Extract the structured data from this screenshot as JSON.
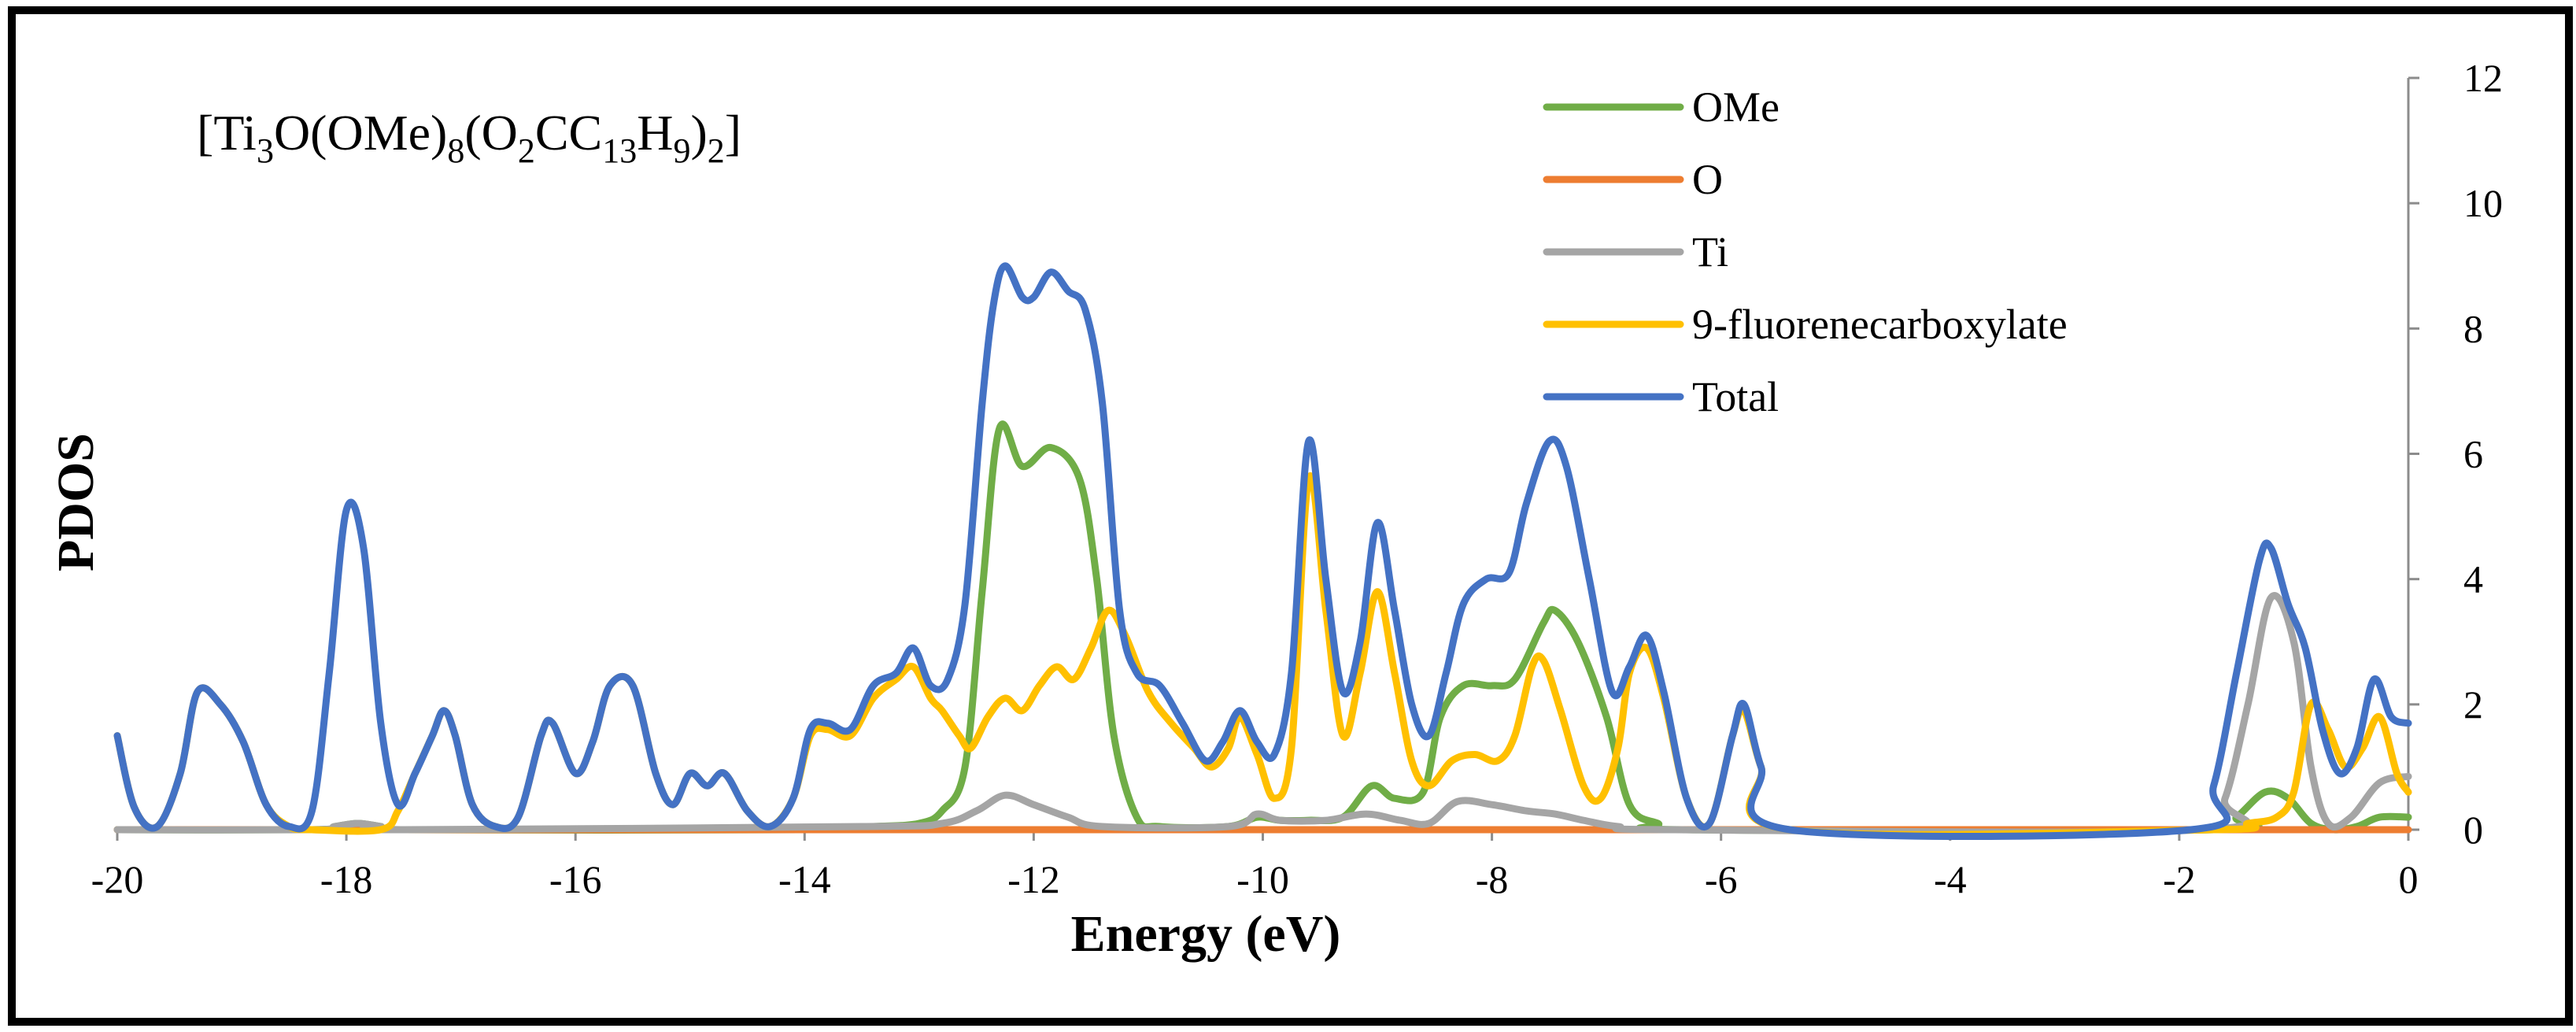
{
  "chart_data": {
    "type": "line",
    "title": "",
    "formula": {
      "parts": [
        {
          "text": "[Ti",
          "sub": false
        },
        {
          "text": "3",
          "sub": true
        },
        {
          "text": "O(OMe)",
          "sub": false
        },
        {
          "text": "8",
          "sub": true
        },
        {
          "text": "(O",
          "sub": false
        },
        {
          "text": "2",
          "sub": true
        },
        {
          "text": "CC",
          "sub": false
        },
        {
          "text": "13",
          "sub": true
        },
        {
          "text": "H",
          "sub": false
        },
        {
          "text": "9",
          "sub": true
        },
        {
          "text": ")",
          "sub": false
        },
        {
          "text": "2",
          "sub": true
        },
        {
          "text": "]",
          "sub": false
        }
      ]
    },
    "xlabel": "Energy (eV)",
    "ylabel": "PDOS",
    "xlim": [
      -20,
      0
    ],
    "ylim": [
      0,
      12
    ],
    "x_ticks": [
      -20,
      -18,
      -16,
      -14,
      -12,
      -10,
      -8,
      -6,
      -4,
      -2,
      0
    ],
    "y_ticks": [
      0,
      2,
      4,
      6,
      8,
      10,
      12
    ],
    "y_axis_side": "right",
    "grid": false,
    "legend_position": "top-right",
    "series": [
      {
        "name": "OMe",
        "color": "#70ad47",
        "points": [
          [
            -20,
            0
          ],
          [
            -18.3,
            0
          ],
          [
            -18.1,
            0.05
          ],
          [
            -17.9,
            0.1
          ],
          [
            -17.7,
            0.05
          ],
          [
            -17.5,
            0
          ],
          [
            -14,
            0
          ],
          [
            -13.4,
            0.05
          ],
          [
            -13,
            0.1
          ],
          [
            -12.8,
            0.3
          ],
          [
            -12.6,
            1
          ],
          [
            -12.45,
            3.8
          ],
          [
            -12.3,
            6.4
          ],
          [
            -12.1,
            5.8
          ],
          [
            -11.85,
            6.1
          ],
          [
            -11.6,
            5.6
          ],
          [
            -11.45,
            4
          ],
          [
            -11.3,
            1.5
          ],
          [
            -11.1,
            0.2
          ],
          [
            -10.9,
            0.05
          ],
          [
            -10.3,
            0.05
          ],
          [
            -10.05,
            0.2
          ],
          [
            -9.85,
            0.15
          ],
          [
            -9.6,
            0.15
          ],
          [
            -9.3,
            0.2
          ],
          [
            -9.05,
            0.7
          ],
          [
            -8.85,
            0.5
          ],
          [
            -8.6,
            0.6
          ],
          [
            -8.45,
            1.8
          ],
          [
            -8.25,
            2.3
          ],
          [
            -8,
            2.3
          ],
          [
            -7.8,
            2.4
          ],
          [
            -7.55,
            3.3
          ],
          [
            -7.45,
            3.5
          ],
          [
            -7.25,
            3
          ],
          [
            -7,
            1.8
          ],
          [
            -6.8,
            0.4
          ],
          [
            -6.55,
            0.1
          ],
          [
            -6.3,
            0
          ],
          [
            -1.7,
            0
          ],
          [
            -1.5,
            0.2
          ],
          [
            -1.25,
            0.6
          ],
          [
            -1.05,
            0.5
          ],
          [
            -0.85,
            0.1
          ],
          [
            -0.65,
            0
          ],
          [
            -0.45,
            0.05
          ],
          [
            -0.25,
            0.2
          ],
          [
            0,
            0.2
          ]
        ]
      },
      {
        "name": "O",
        "color": "#ed7d31",
        "points": [
          [
            -20,
            0
          ],
          [
            0,
            0
          ]
        ]
      },
      {
        "name": "Ti",
        "color": "#a5a5a5",
        "points": [
          [
            -20,
            0
          ],
          [
            -18.3,
            0
          ],
          [
            -18.1,
            0.05
          ],
          [
            -17.9,
            0.1
          ],
          [
            -17.7,
            0.05
          ],
          [
            -17.5,
            0
          ],
          [
            -13.5,
            0.05
          ],
          [
            -12.8,
            0.1
          ],
          [
            -12.5,
            0.3
          ],
          [
            -12.25,
            0.55
          ],
          [
            -12,
            0.4
          ],
          [
            -11.7,
            0.2
          ],
          [
            -11.4,
            0.05
          ],
          [
            -10.3,
            0.05
          ],
          [
            -10.05,
            0.25
          ],
          [
            -9.85,
            0.15
          ],
          [
            -9.45,
            0.15
          ],
          [
            -9.1,
            0.25
          ],
          [
            -8.8,
            0.15
          ],
          [
            -8.55,
            0.1
          ],
          [
            -8.3,
            0.45
          ],
          [
            -8,
            0.4
          ],
          [
            -7.7,
            0.3
          ],
          [
            -7.45,
            0.25
          ],
          [
            -7.2,
            0.15
          ],
          [
            -6.9,
            0.05
          ],
          [
            -6.4,
            0
          ],
          [
            -1.8,
            0
          ],
          [
            -1.6,
            0.5
          ],
          [
            -1.4,
            2
          ],
          [
            -1.2,
            3.7
          ],
          [
            -1,
            3
          ],
          [
            -0.85,
            1
          ],
          [
            -0.7,
            0.1
          ],
          [
            -0.5,
            0.2
          ],
          [
            -0.25,
            0.75
          ],
          [
            0,
            0.85
          ]
        ]
      },
      {
        "name": "9-fluorenecarboxylate",
        "color": "#ffc000",
        "points": [
          [
            -20,
            1.5
          ],
          [
            -19.85,
            0.35
          ],
          [
            -19.65,
            0.05
          ],
          [
            -19.45,
            0.9
          ],
          [
            -19.3,
            2.2
          ],
          [
            -19.1,
            2
          ],
          [
            -18.9,
            1.4
          ],
          [
            -18.7,
            0.4
          ],
          [
            -18.5,
            0.05
          ],
          [
            -18.3,
            0
          ],
          [
            -17.7,
            0
          ],
          [
            -17.55,
            0.3
          ],
          [
            -17.4,
            0.9
          ],
          [
            -17.25,
            1.5
          ],
          [
            -17.15,
            1.9
          ],
          [
            -17.05,
            1.5
          ],
          [
            -16.9,
            0.4
          ],
          [
            -16.7,
            0.05
          ],
          [
            -16.5,
            0.2
          ],
          [
            -16.3,
            1.5
          ],
          [
            -16.2,
            1.7
          ],
          [
            -16,
            0.9
          ],
          [
            -15.85,
            1.4
          ],
          [
            -15.7,
            2.3
          ],
          [
            -15.5,
            2.3
          ],
          [
            -15.3,
            0.9
          ],
          [
            -15.15,
            0.4
          ],
          [
            -15,
            0.9
          ],
          [
            -14.85,
            0.7
          ],
          [
            -14.7,
            0.9
          ],
          [
            -14.5,
            0.3
          ],
          [
            -14.3,
            0.05
          ],
          [
            -14.1,
            0.5
          ],
          [
            -13.95,
            1.5
          ],
          [
            -13.8,
            1.6
          ],
          [
            -13.6,
            1.5
          ],
          [
            -13.4,
            2.1
          ],
          [
            -13.2,
            2.4
          ],
          [
            -13.05,
            2.6
          ],
          [
            -12.9,
            2.1
          ],
          [
            -12.8,
            1.9
          ],
          [
            -12.65,
            1.5
          ],
          [
            -12.55,
            1.3
          ],
          [
            -12.4,
            1.8
          ],
          [
            -12.25,
            2.1
          ],
          [
            -12.1,
            1.9
          ],
          [
            -11.95,
            2.3
          ],
          [
            -11.8,
            2.6
          ],
          [
            -11.65,
            2.4
          ],
          [
            -11.5,
            2.9
          ],
          [
            -11.35,
            3.5
          ],
          [
            -11.2,
            3.1
          ],
          [
            -11,
            2.2
          ],
          [
            -10.8,
            1.7
          ],
          [
            -10.6,
            1.3
          ],
          [
            -10.45,
            1
          ],
          [
            -10.3,
            1.3
          ],
          [
            -10.2,
            1.8
          ],
          [
            -10.05,
            1.2
          ],
          [
            -9.9,
            0.5
          ],
          [
            -9.75,
            1.3
          ],
          [
            -9.6,
            5.6
          ],
          [
            -9.45,
            3.5
          ],
          [
            -9.3,
            1.5
          ],
          [
            -9.15,
            2.5
          ],
          [
            -9,
            3.8
          ],
          [
            -8.85,
            2.5
          ],
          [
            -8.7,
            1.1
          ],
          [
            -8.55,
            0.7
          ],
          [
            -8.35,
            1.1
          ],
          [
            -8.15,
            1.2
          ],
          [
            -7.95,
            1.1
          ],
          [
            -7.8,
            1.5
          ],
          [
            -7.65,
            2.6
          ],
          [
            -7.55,
            2.7
          ],
          [
            -7.4,
            1.9
          ],
          [
            -7.2,
            0.7
          ],
          [
            -7.05,
            0.5
          ],
          [
            -6.9,
            1.3
          ],
          [
            -6.8,
            2.5
          ],
          [
            -6.65,
            2.9
          ],
          [
            -6.5,
            2.1
          ],
          [
            -6.3,
            0.5
          ],
          [
            -6.1,
            0.1
          ],
          [
            -5.9,
            1.5
          ],
          [
            -5.8,
            1.9
          ],
          [
            -5.65,
            1
          ],
          [
            -5.4,
            0
          ],
          [
            -1.7,
            0
          ],
          [
            -1.4,
            0.1
          ],
          [
            -1.15,
            0.2
          ],
          [
            -1,
            0.6
          ],
          [
            -0.85,
            2
          ],
          [
            -0.7,
            1.6
          ],
          [
            -0.55,
            1
          ],
          [
            -0.4,
            1.3
          ],
          [
            -0.25,
            1.8
          ],
          [
            -0.1,
            0.9
          ],
          [
            0,
            0.6
          ]
        ]
      },
      {
        "name": "Total",
        "color": "#4472c4",
        "points": [
          [
            -20,
            1.5
          ],
          [
            -19.85,
            0.35
          ],
          [
            -19.65,
            0.05
          ],
          [
            -19.45,
            0.9
          ],
          [
            -19.3,
            2.2
          ],
          [
            -19.1,
            2
          ],
          [
            -18.9,
            1.4
          ],
          [
            -18.7,
            0.4
          ],
          [
            -18.5,
            0.05
          ],
          [
            -18.3,
            0.3
          ],
          [
            -18.15,
            2.5
          ],
          [
            -18,
            5.1
          ],
          [
            -17.85,
            4.5
          ],
          [
            -17.7,
            1.7
          ],
          [
            -17.55,
            0.4
          ],
          [
            -17.4,
            0.9
          ],
          [
            -17.25,
            1.5
          ],
          [
            -17.15,
            1.9
          ],
          [
            -17.05,
            1.5
          ],
          [
            -16.9,
            0.4
          ],
          [
            -16.7,
            0.05
          ],
          [
            -16.5,
            0.2
          ],
          [
            -16.3,
            1.5
          ],
          [
            -16.2,
            1.7
          ],
          [
            -16,
            0.9
          ],
          [
            -15.85,
            1.4
          ],
          [
            -15.7,
            2.3
          ],
          [
            -15.5,
            2.3
          ],
          [
            -15.3,
            0.9
          ],
          [
            -15.15,
            0.4
          ],
          [
            -15,
            0.9
          ],
          [
            -14.85,
            0.7
          ],
          [
            -14.7,
            0.9
          ],
          [
            -14.5,
            0.3
          ],
          [
            -14.3,
            0.05
          ],
          [
            -14.1,
            0.5
          ],
          [
            -13.95,
            1.6
          ],
          [
            -13.8,
            1.7
          ],
          [
            -13.6,
            1.6
          ],
          [
            -13.4,
            2.3
          ],
          [
            -13.2,
            2.5
          ],
          [
            -13.05,
            2.9
          ],
          [
            -12.9,
            2.3
          ],
          [
            -12.75,
            2.4
          ],
          [
            -12.6,
            3.6
          ],
          [
            -12.45,
            6.8
          ],
          [
            -12.35,
            8.4
          ],
          [
            -12.25,
            9
          ],
          [
            -12.1,
            8.5
          ],
          [
            -12,
            8.5
          ],
          [
            -11.85,
            8.9
          ],
          [
            -11.7,
            8.6
          ],
          [
            -11.55,
            8.3
          ],
          [
            -11.4,
            6.8
          ],
          [
            -11.25,
            3.5
          ],
          [
            -11.1,
            2.5
          ],
          [
            -10.9,
            2.3
          ],
          [
            -10.7,
            1.7
          ],
          [
            -10.5,
            1.1
          ],
          [
            -10.35,
            1.4
          ],
          [
            -10.2,
            1.9
          ],
          [
            -10.05,
            1.4
          ],
          [
            -9.9,
            1.2
          ],
          [
            -9.75,
            2.5
          ],
          [
            -9.6,
            6.2
          ],
          [
            -9.45,
            4
          ],
          [
            -9.3,
            2.2
          ],
          [
            -9.15,
            3
          ],
          [
            -9,
            4.9
          ],
          [
            -8.85,
            3.5
          ],
          [
            -8.7,
            2
          ],
          [
            -8.55,
            1.5
          ],
          [
            -8.4,
            2.5
          ],
          [
            -8.25,
            3.6
          ],
          [
            -8.05,
            4
          ],
          [
            -7.85,
            4.1
          ],
          [
            -7.7,
            5.2
          ],
          [
            -7.5,
            6.2
          ],
          [
            -7.35,
            5.8
          ],
          [
            -7.15,
            4
          ],
          [
            -6.95,
            2.2
          ],
          [
            -6.8,
            2.6
          ],
          [
            -6.65,
            3.1
          ],
          [
            -6.5,
            2.2
          ],
          [
            -6.3,
            0.5
          ],
          [
            -6.1,
            0.1
          ],
          [
            -5.9,
            1.5
          ],
          [
            -5.8,
            2
          ],
          [
            -5.65,
            1
          ],
          [
            -5.4,
            0
          ],
          [
            -1.9,
            0
          ],
          [
            -1.7,
            0.7
          ],
          [
            -1.5,
            2.5
          ],
          [
            -1.3,
            4.3
          ],
          [
            -1.2,
            4.5
          ],
          [
            -1.05,
            3.6
          ],
          [
            -0.9,
            2.9
          ],
          [
            -0.75,
            1.6
          ],
          [
            -0.6,
            0.9
          ],
          [
            -0.45,
            1.3
          ],
          [
            -0.3,
            2.4
          ],
          [
            -0.15,
            1.8
          ],
          [
            0,
            1.7
          ]
        ]
      }
    ]
  }
}
